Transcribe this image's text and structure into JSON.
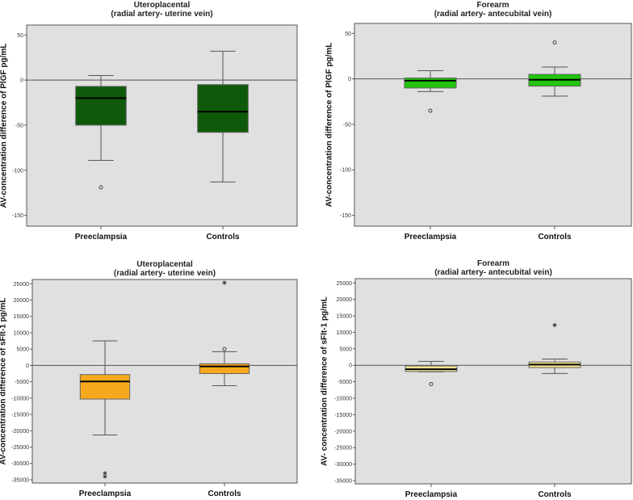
{
  "chart_data": [
    {
      "type": "box",
      "title": [
        "Uteroplacental",
        "(radial artery- uterine vein)"
      ],
      "xlabel": "",
      "ylabel": "AV-concentration difference of PlGF pg/mL",
      "ylim": [
        -162,
        61
      ],
      "yticks": [
        50,
        0,
        -50,
        -100,
        -150
      ],
      "ytick_labels": [
        "50",
        "0",
        "-50",
        "-100",
        "-150"
      ],
      "reference_line": 0,
      "color": "#0f5a0a",
      "categories": [
        "Preeclampsia",
        "Controls"
      ],
      "boxes": [
        {
          "whisker_high": 5,
          "q3": -7,
          "median": -20,
          "q1": -50,
          "whisker_low": -89,
          "outliers": [
            -119
          ],
          "extremes": []
        },
        {
          "whisker_high": 32,
          "q3": -5,
          "median": -35,
          "q1": -58,
          "whisker_low": -113,
          "outliers": [],
          "extremes": []
        }
      ]
    },
    {
      "type": "box",
      "title": [
        "Forearm",
        "(radial artery- antecubital vein)"
      ],
      "xlabel": "",
      "ylabel": "AV-concentration difference of PlGF pg/mL",
      "ylim": [
        -162,
        61
      ],
      "yticks": [
        50,
        0,
        -50,
        -100,
        -150
      ],
      "ytick_labels": [
        "50",
        "0",
        "-50",
        "-100",
        "-150"
      ],
      "reference_line": 0,
      "color": "#22c40c",
      "categories": [
        "Preeclampsia",
        "Controls"
      ],
      "boxes": [
        {
          "whisker_high": 9,
          "q3": 1,
          "median": -2,
          "q1": -10,
          "whisker_low": -14,
          "outliers": [
            -35
          ],
          "extremes": []
        },
        {
          "whisker_high": 13,
          "q3": 5,
          "median": -1,
          "q1": -8,
          "whisker_low": -19,
          "outliers": [
            40
          ],
          "extremes": []
        }
      ]
    },
    {
      "type": "box",
      "title": [
        "Uteroplacental",
        "(radial artery- uterine vein)"
      ],
      "xlabel": "",
      "ylabel": "AV-concentration difference of sFlt-1 pg/mL",
      "ylim": [
        -36000,
        26300
      ],
      "yticks": [
        25000,
        20000,
        15000,
        10000,
        5000,
        0,
        -5000,
        -10000,
        -15000,
        -20000,
        -25000,
        -30000,
        -35000
      ],
      "ytick_labels": [
        "25000",
        "20000",
        "15000",
        "10000",
        "5000",
        "0",
        "-5000",
        "-10000",
        "-15000",
        "-20000",
        "-25000",
        "-30000",
        "-35000"
      ],
      "reference_line": 0,
      "color": "#f6a91f",
      "categories": [
        "Preeclampsia",
        "Controls"
      ],
      "boxes": [
        {
          "whisker_high": 7500,
          "q3": -2800,
          "median": -4900,
          "q1": -10300,
          "whisker_low": -21300,
          "outliers": [],
          "extremes": [
            -33000,
            -34000
          ]
        },
        {
          "whisker_high": 4200,
          "q3": 500,
          "median": -300,
          "q1": -2500,
          "whisker_low": -6200,
          "outliers": [
            5000
          ],
          "extremes": [
            25300
          ]
        }
      ]
    },
    {
      "type": "box",
      "title": [
        "Forearm",
        "(radial artery- antecubital vein)"
      ],
      "xlabel": "",
      "ylabel": "AV- concentration difference of sFlt-1 pg/mL",
      "ylim": [
        -36000,
        26300
      ],
      "yticks": [
        25000,
        20000,
        15000,
        10000,
        5000,
        0,
        -5000,
        -10000,
        -15000,
        -20000,
        -25000,
        -30000,
        -35000
      ],
      "ytick_labels": [
        "25000",
        "20000",
        "15000",
        "10000",
        "5000",
        "0",
        "-5000",
        "-10000",
        "-15000",
        "-20000",
        "-25000",
        "-30000",
        "-35000"
      ],
      "reference_line": 0,
      "color": "#f7e38e",
      "categories": [
        "Preeclampsia",
        "Controls"
      ],
      "boxes": [
        {
          "whisker_high": 1200,
          "q3": -200,
          "median": -1200,
          "q1": -1900,
          "whisker_low": -2000,
          "outliers": [
            -5700
          ],
          "extremes": []
        },
        {
          "whisker_high": 1900,
          "q3": 1000,
          "median": 200,
          "q1": -700,
          "whisker_low": -2500,
          "outliers": [],
          "extremes": [
            12200
          ]
        }
      ]
    }
  ]
}
